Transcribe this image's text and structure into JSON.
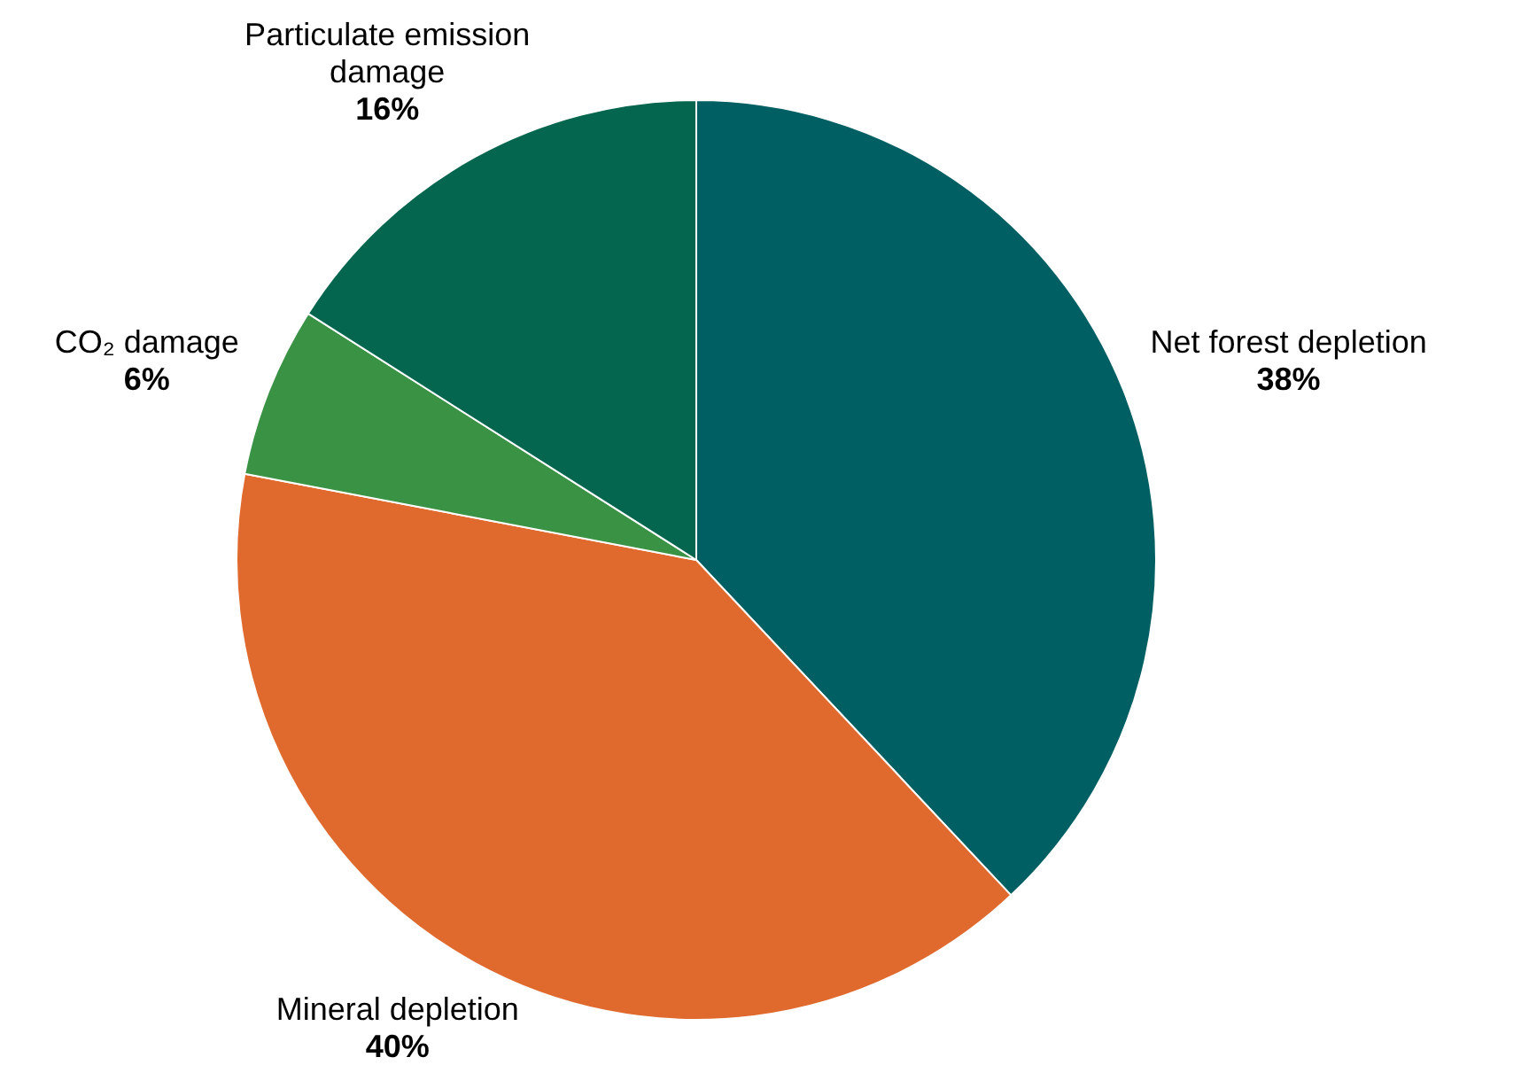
{
  "chart_data": {
    "type": "pie",
    "categories": [
      "Net forest depletion",
      "Mineral depletion",
      "CO₂ damage",
      "Particulate emission damage"
    ],
    "values": [
      38,
      40,
      6,
      16
    ],
    "colors": [
      "#005f63",
      "#e06a2e",
      "#3a9245",
      "#04664e"
    ],
    "value_labels": [
      "38%",
      "40%",
      "6%",
      "16%"
    ],
    "legend": false
  }
}
